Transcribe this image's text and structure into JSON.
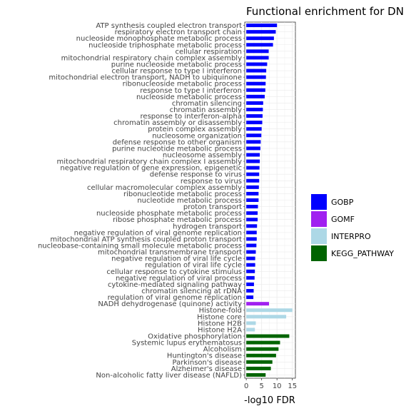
{
  "chart_data": {
    "type": "bar",
    "orientation": "horizontal",
    "title": "Functional enrichment for DN",
    "xlabel": "-log10 FDR",
    "ylabel": "",
    "xlim": [
      -0.5,
      16
    ],
    "xticks": [
      0,
      5,
      10,
      15
    ],
    "grid": true,
    "legend_position": "right",
    "colors": {
      "GOBP": "#0000ff",
      "GOMF": "#a020f0",
      "INTERPRO": "#add8e6",
      "KEGG_PATHWAY": "#006400"
    },
    "legend": [
      "GOBP",
      "GOMF",
      "INTERPRO",
      "KEGG_PATHWAY"
    ],
    "categories": [
      "ATP synthesis coupled electron transport",
      "respiratory electron transport chain",
      "nucleoside monophosphate metabolic process",
      "nucleoside triphosphate metabolic process",
      "cellular respiration",
      "mitochondrial respiratory chain complex assembly",
      "purine nucleoside metabolic process",
      "cellular response to type I interferon",
      "mitochondrial electron transport, NADH to ubiquinone",
      "ribonucleoside metabolic process",
      "response to type I interferon",
      "nucleoside metabolic process",
      "chromatin silencing",
      "chromatin assembly",
      "response to interferon-alpha",
      "chromatin assembly or disassembly",
      "protein complex assembly",
      "nucleosome organization",
      "defense response to other organism",
      "purine nucleotide metabolic process",
      "nucleosome assembly",
      "mitochondrial respiratory chain complex I assembly",
      "negative regulation of gene expression, epigenetic",
      "defense response to virus",
      "response to virus",
      "cellular macromolecular complex assembly",
      "ribonucleotide metabolic process",
      "nucleotide metabolic process",
      "proton transport",
      "nucleoside phosphate metabolic process",
      "ribose phosphate metabolic process",
      "hydrogen transport",
      "negative regulation of viral genome replication",
      "mitochondrial ATP synthesis coupled proton transport",
      "nucleobase-containing small molecule metabolic process",
      "mitochondrial transmembrane transport",
      "negative regulation of viral life cycle",
      "regulation of viral life cycle",
      "cellular response to cytokine stimulus",
      "negative regulation of viral process",
      "cytokine-mediated signaling pathway",
      "chromatin silencing at rDNA",
      "regulation of viral genome replication",
      "NADH dehydrogenase (quinone) activity",
      "Histone-fold",
      "Histone core",
      "Histone H2B",
      "Histone H2A",
      "Oxidative phosphorylation",
      "Systemic lupus erythematosus",
      "Alcoholism",
      "Huntington's disease",
      "Parkinson's disease",
      "Alzheimer's disease",
      "Non-alcoholic fatty liver disease (NAFLD)"
    ],
    "values": [
      10.0,
      9.6,
      9.0,
      8.7,
      7.3,
      7.3,
      6.8,
      6.5,
      6.4,
      6.3,
      6.2,
      6.0,
      5.5,
      5.4,
      5.3,
      5.2,
      5.0,
      4.9,
      4.7,
      4.6,
      4.4,
      4.4,
      4.3,
      4.2,
      4.2,
      4.1,
      4.0,
      4.0,
      3.8,
      3.7,
      3.7,
      3.5,
      3.4,
      3.4,
      3.3,
      3.1,
      2.9,
      2.9,
      2.8,
      2.7,
      2.5,
      2.4,
      2.3,
      7.4,
      15.0,
      13.0,
      3.1,
      2.8,
      14.0,
      11.0,
      10.5,
      9.7,
      8.5,
      8.0,
      6.3
    ],
    "groups": [
      "GOBP",
      "GOBP",
      "GOBP",
      "GOBP",
      "GOBP",
      "GOBP",
      "GOBP",
      "GOBP",
      "GOBP",
      "GOBP",
      "GOBP",
      "GOBP",
      "GOBP",
      "GOBP",
      "GOBP",
      "GOBP",
      "GOBP",
      "GOBP",
      "GOBP",
      "GOBP",
      "GOBP",
      "GOBP",
      "GOBP",
      "GOBP",
      "GOBP",
      "GOBP",
      "GOBP",
      "GOBP",
      "GOBP",
      "GOBP",
      "GOBP",
      "GOBP",
      "GOBP",
      "GOBP",
      "GOBP",
      "GOBP",
      "GOBP",
      "GOBP",
      "GOBP",
      "GOBP",
      "GOBP",
      "GOBP",
      "GOBP",
      "GOMF",
      "INTERPRO",
      "INTERPRO",
      "INTERPRO",
      "INTERPRO",
      "KEGG_PATHWAY",
      "KEGG_PATHWAY",
      "KEGG_PATHWAY",
      "KEGG_PATHWAY",
      "KEGG_PATHWAY",
      "KEGG_PATHWAY",
      "KEGG_PATHWAY"
    ]
  }
}
